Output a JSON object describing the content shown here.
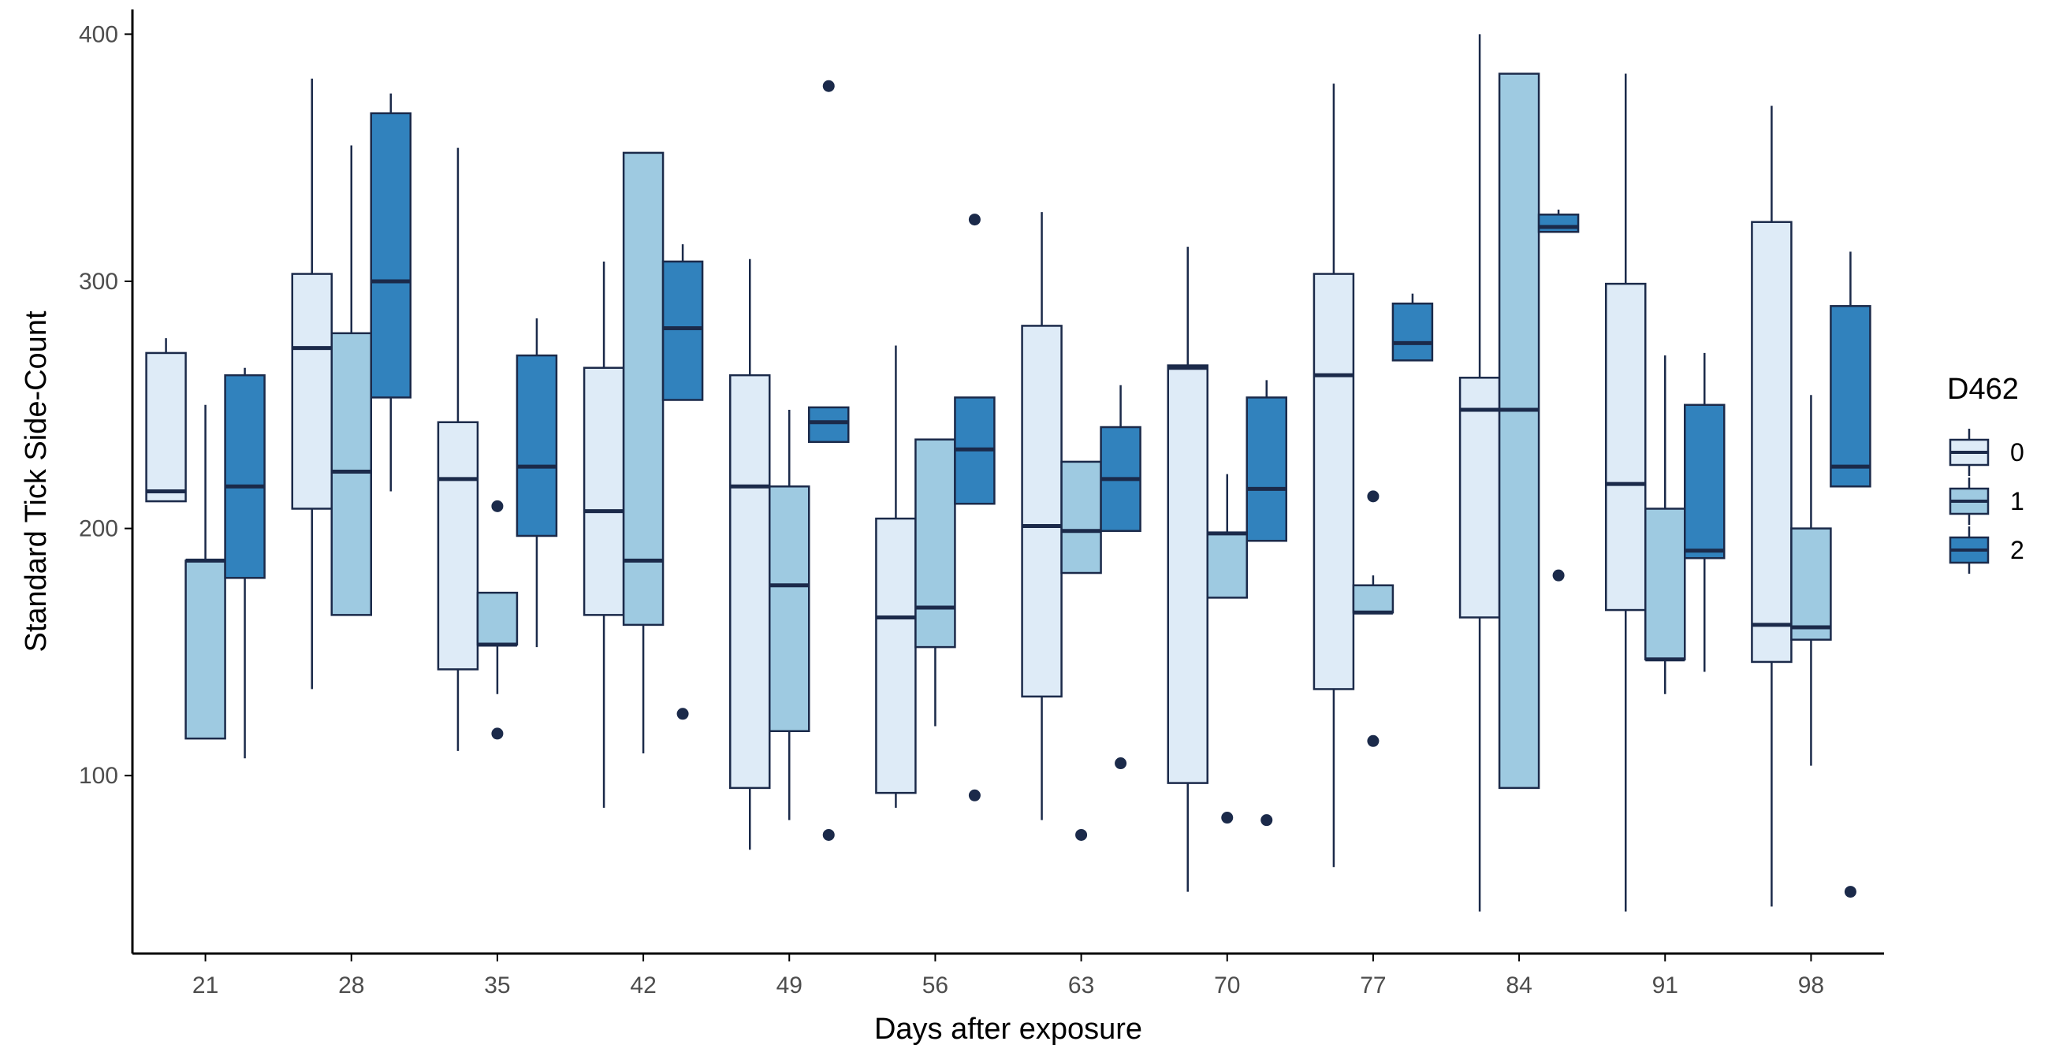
{
  "chart_data": {
    "type": "boxplot",
    "title": "",
    "xlabel": "Days after exposure",
    "ylabel": "Standard Tick Side-Count",
    "ylim": [
      28,
      410
    ],
    "yticks": [
      100,
      200,
      300,
      400
    ],
    "ytick_labels": [
      "100",
      "200",
      "300",
      "400"
    ],
    "categories": [
      "21",
      "28",
      "35",
      "42",
      "49",
      "56",
      "63",
      "70",
      "77",
      "84",
      "91",
      "98"
    ],
    "legend": {
      "title": "D462",
      "position": "right",
      "entries": [
        "0",
        "1",
        "2"
      ]
    },
    "colors": {
      "0": "#deebf7",
      "1": "#9ecae1",
      "2": "#3182bd",
      "line": "#1b2a4a",
      "axis": "#000000"
    },
    "grid": false,
    "series": [
      {
        "name": "0",
        "boxes": [
          {
            "day": "21",
            "min": 211,
            "q1": 211,
            "median": 215,
            "q3": 271,
            "max": 277,
            "outliers": []
          },
          {
            "day": "28",
            "min": 135,
            "q1": 208,
            "median": 273,
            "q3": 303,
            "max": 382,
            "outliers": []
          },
          {
            "day": "35",
            "min": 110,
            "q1": 143,
            "median": 220,
            "q3": 243,
            "max": 354,
            "outliers": []
          },
          {
            "day": "42",
            "min": 87,
            "q1": 165,
            "median": 207,
            "q3": 265,
            "max": 308,
            "outliers": []
          },
          {
            "day": "49",
            "min": 70,
            "q1": 95,
            "median": 217,
            "q3": 262,
            "max": 309,
            "outliers": []
          },
          {
            "day": "56",
            "min": 87,
            "q1": 93,
            "median": 164,
            "q3": 204,
            "max": 274,
            "outliers": []
          },
          {
            "day": "63",
            "min": 82,
            "q1": 132,
            "median": 201,
            "q3": 282,
            "max": 328,
            "outliers": []
          },
          {
            "day": "70",
            "min": 53,
            "q1": 97,
            "median": 265,
            "q3": 266,
            "max": 314,
            "outliers": []
          },
          {
            "day": "77",
            "min": 63,
            "q1": 135,
            "median": 262,
            "q3": 303,
            "max": 380,
            "outliers": []
          },
          {
            "day": "84",
            "min": 45,
            "q1": 164,
            "median": 248,
            "q3": 261,
            "max": 400,
            "outliers": []
          },
          {
            "day": "91",
            "min": 45,
            "q1": 167,
            "median": 218,
            "q3": 299,
            "max": 384,
            "outliers": []
          },
          {
            "day": "98",
            "min": 47,
            "q1": 146,
            "median": 161,
            "q3": 324,
            "max": 371,
            "outliers": []
          }
        ]
      },
      {
        "name": "1",
        "boxes": [
          {
            "day": "21",
            "min": 115,
            "q1": 115,
            "median": 187,
            "q3": 187,
            "max": 250,
            "outliers": []
          },
          {
            "day": "28",
            "min": 165,
            "q1": 165,
            "median": 223,
            "q3": 279,
            "max": 355,
            "outliers": []
          },
          {
            "day": "35",
            "min": 133,
            "q1": 153,
            "median": 153,
            "q3": 174,
            "max": 174,
            "outliers": [
              209,
              117
            ]
          },
          {
            "day": "42",
            "min": 109,
            "q1": 161,
            "median": 187,
            "q3": 352,
            "max": 352,
            "outliers": []
          },
          {
            "day": "49",
            "min": 82,
            "q1": 118,
            "median": 177,
            "q3": 217,
            "max": 248,
            "outliers": []
          },
          {
            "day": "56",
            "min": 120,
            "q1": 152,
            "median": 168,
            "q3": 236,
            "max": 236,
            "outliers": []
          },
          {
            "day": "63",
            "min": 182,
            "q1": 182,
            "median": 199,
            "q3": 227,
            "max": 227,
            "outliers": [
              76
            ]
          },
          {
            "day": "70",
            "min": 172,
            "q1": 172,
            "median": 198,
            "q3": 198,
            "max": 222,
            "outliers": [
              83
            ]
          },
          {
            "day": "77",
            "min": 166,
            "q1": 166,
            "median": 166,
            "q3": 177,
            "max": 181,
            "outliers": [
              213,
              114
            ]
          },
          {
            "day": "84",
            "min": 95,
            "q1": 95,
            "median": 248,
            "q3": 384,
            "max": 384,
            "outliers": []
          },
          {
            "day": "91",
            "min": 133,
            "q1": 147,
            "median": 147,
            "q3": 208,
            "max": 270,
            "outliers": []
          },
          {
            "day": "98",
            "min": 104,
            "q1": 155,
            "median": 160,
            "q3": 200,
            "max": 254,
            "outliers": []
          }
        ]
      },
      {
        "name": "2",
        "boxes": [
          {
            "day": "21",
            "min": 107,
            "q1": 180,
            "median": 217,
            "q3": 262,
            "max": 265,
            "outliers": []
          },
          {
            "day": "28",
            "min": 215,
            "q1": 253,
            "median": 300,
            "q3": 368,
            "max": 376,
            "outliers": []
          },
          {
            "day": "35",
            "min": 152,
            "q1": 197,
            "median": 225,
            "q3": 270,
            "max": 285,
            "outliers": []
          },
          {
            "day": "42",
            "min": 252,
            "q1": 252,
            "median": 281,
            "q3": 308,
            "max": 315,
            "outliers": [
              125
            ]
          },
          {
            "day": "49",
            "min": 235,
            "q1": 235,
            "median": 243,
            "q3": 249,
            "max": 249,
            "outliers": [
              379,
              76
            ]
          },
          {
            "day": "56",
            "min": 210,
            "q1": 210,
            "median": 232,
            "q3": 253,
            "max": 253,
            "outliers": [
              325,
              92
            ]
          },
          {
            "day": "63",
            "min": 199,
            "q1": 199,
            "median": 220,
            "q3": 241,
            "max": 258,
            "outliers": [
              105
            ]
          },
          {
            "day": "70",
            "min": 195,
            "q1": 195,
            "median": 216,
            "q3": 253,
            "max": 260,
            "outliers": [
              82
            ]
          },
          {
            "day": "77",
            "min": 268,
            "q1": 268,
            "median": 275,
            "q3": 291,
            "max": 295,
            "outliers": []
          },
          {
            "day": "84",
            "min": 320,
            "q1": 320,
            "median": 322,
            "q3": 327,
            "max": 329,
            "outliers": [
              181
            ]
          },
          {
            "day": "91",
            "min": 142,
            "q1": 188,
            "median": 191,
            "q3": 250,
            "max": 271,
            "outliers": []
          },
          {
            "day": "98",
            "min": 217,
            "q1": 217,
            "median": 225,
            "q3": 290,
            "max": 312,
            "outliers": [
              53
            ]
          }
        ]
      }
    ]
  }
}
